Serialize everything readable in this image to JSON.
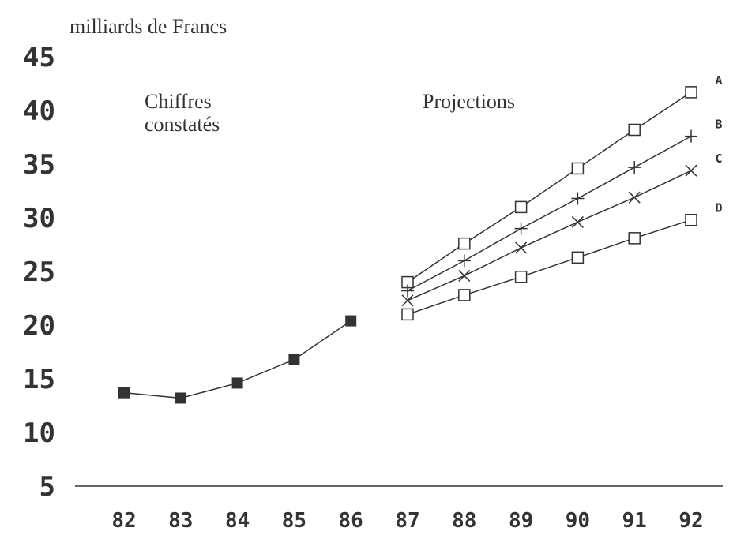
{
  "chart_data": {
    "type": "line",
    "y_label": "milliards de Francs",
    "categories": [
      "82",
      "83",
      "84",
      "85",
      "86",
      "87",
      "88",
      "89",
      "90",
      "91",
      "92"
    ],
    "ylim": [
      5,
      45
    ],
    "yticks": [
      5,
      10,
      15,
      20,
      25,
      30,
      35,
      40,
      45
    ],
    "annotations": [
      "Chiffres",
      "constatés",
      "Projections"
    ],
    "color": "#333333",
    "series": [
      {
        "marker": "filled-square",
        "values": [
          13.7,
          13.2,
          14.6,
          16.8,
          20.4,
          null,
          null,
          null,
          null,
          null,
          null
        ]
      },
      {
        "name": "A",
        "marker": "square",
        "values": [
          null,
          null,
          null,
          null,
          null,
          24.0,
          27.6,
          31.0,
          34.6,
          38.2,
          41.7
        ]
      },
      {
        "name": "B",
        "marker": "plus",
        "values": [
          null,
          null,
          null,
          null,
          null,
          23.2,
          26.0,
          29.0,
          31.8,
          34.7,
          37.6
        ]
      },
      {
        "name": "C",
        "marker": "x",
        "values": [
          null,
          null,
          null,
          null,
          null,
          22.3,
          24.6,
          27.2,
          29.6,
          31.9,
          34.4
        ]
      },
      {
        "name": "D",
        "marker": "square",
        "values": [
          null,
          null,
          null,
          null,
          null,
          21.0,
          22.8,
          24.5,
          26.3,
          28.1,
          29.8
        ]
      }
    ]
  }
}
